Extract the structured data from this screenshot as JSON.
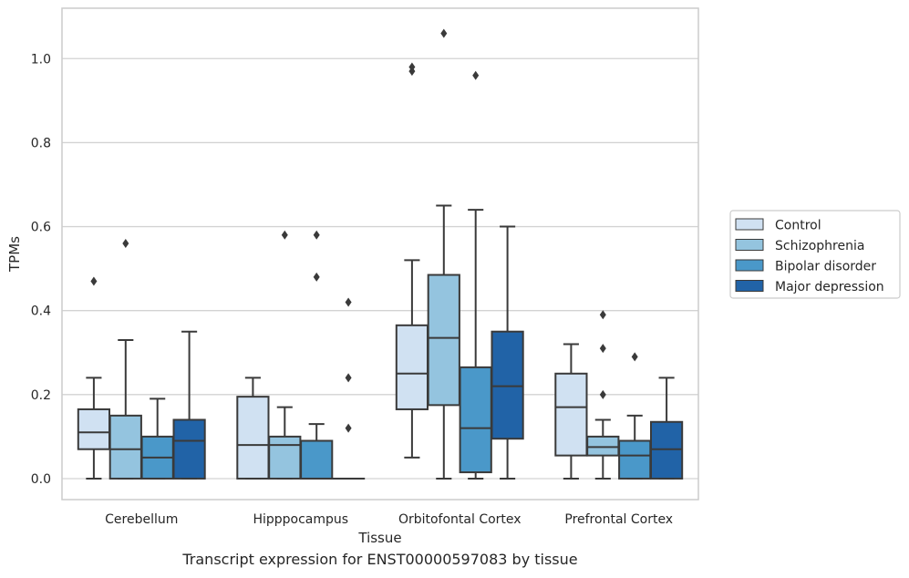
{
  "caption": "Transcript expression for ENST00000597083 by tissue",
  "chart_data": {
    "type": "box",
    "xlabel": "Tissue",
    "ylabel": "TPMs",
    "ylim": [
      -0.05,
      1.12
    ],
    "yticks": [
      0.0,
      0.2,
      0.4,
      0.6,
      0.8,
      1.0
    ],
    "ytick_labels": [
      "0.0",
      "0.2",
      "0.4",
      "0.6",
      "0.8",
      "1.0"
    ],
    "grid": "horizontal",
    "legend_position": "right",
    "categories": [
      "Cerebellum",
      "Hipppocampus",
      "Orbitofontal Cortex",
      "Prefrontal Cortex"
    ],
    "series": [
      {
        "name": "Control",
        "color": "#d0e1f2",
        "boxes": [
          {
            "low": 0.0,
            "q1": 0.07,
            "median": 0.11,
            "q3": 0.165,
            "high": 0.24,
            "outliers": [
              0.47
            ]
          },
          {
            "low": 0.0,
            "q1": 0.0,
            "median": 0.08,
            "q3": 0.195,
            "high": 0.24,
            "outliers": []
          },
          {
            "low": 0.05,
            "q1": 0.165,
            "median": 0.25,
            "q3": 0.365,
            "high": 0.52,
            "outliers": [
              0.97,
              0.98
            ]
          },
          {
            "low": 0.0,
            "q1": 0.055,
            "median": 0.17,
            "q3": 0.25,
            "high": 0.32,
            "outliers": []
          }
        ]
      },
      {
        "name": "Schizophrenia",
        "color": "#94c4df",
        "boxes": [
          {
            "low": 0.0,
            "q1": 0.0,
            "median": 0.07,
            "q3": 0.15,
            "high": 0.33,
            "outliers": [
              0.56
            ]
          },
          {
            "low": 0.0,
            "q1": 0.0,
            "median": 0.08,
            "q3": 0.1,
            "high": 0.17,
            "outliers": [
              0.58
            ]
          },
          {
            "low": 0.0,
            "q1": 0.175,
            "median": 0.335,
            "q3": 0.485,
            "high": 0.65,
            "outliers": [
              1.06
            ]
          },
          {
            "low": 0.0,
            "q1": 0.055,
            "median": 0.075,
            "q3": 0.1,
            "high": 0.14,
            "outliers": [
              0.2,
              0.31,
              0.39
            ]
          }
        ]
      },
      {
        "name": "Bipolar disorder",
        "color": "#4a98c9",
        "boxes": [
          {
            "low": 0.0,
            "q1": 0.0,
            "median": 0.05,
            "q3": 0.1,
            "high": 0.19,
            "outliers": []
          },
          {
            "low": 0.0,
            "q1": 0.0,
            "median": 0.0,
            "q3": 0.09,
            "high": 0.13,
            "outliers": [
              0.48,
              0.58
            ]
          },
          {
            "low": 0.0,
            "q1": 0.015,
            "median": 0.12,
            "q3": 0.265,
            "high": 0.64,
            "outliers": [
              0.96
            ]
          },
          {
            "low": 0.0,
            "q1": 0.0,
            "median": 0.055,
            "q3": 0.09,
            "high": 0.15,
            "outliers": [
              0.29
            ]
          }
        ]
      },
      {
        "name": "Major depression",
        "color": "#2163a7",
        "boxes": [
          {
            "low": 0.0,
            "q1": 0.0,
            "median": 0.09,
            "q3": 0.14,
            "high": 0.35,
            "outliers": []
          },
          {
            "low": 0.0,
            "q1": 0.0,
            "median": 0.0,
            "q3": 0.0,
            "high": 0.0,
            "outliers": [
              0.12,
              0.24,
              0.42
            ]
          },
          {
            "low": 0.0,
            "q1": 0.095,
            "median": 0.22,
            "q3": 0.35,
            "high": 0.6,
            "outliers": []
          },
          {
            "low": 0.0,
            "q1": 0.0,
            "median": 0.07,
            "q3": 0.135,
            "high": 0.24,
            "outliers": []
          }
        ]
      }
    ]
  }
}
